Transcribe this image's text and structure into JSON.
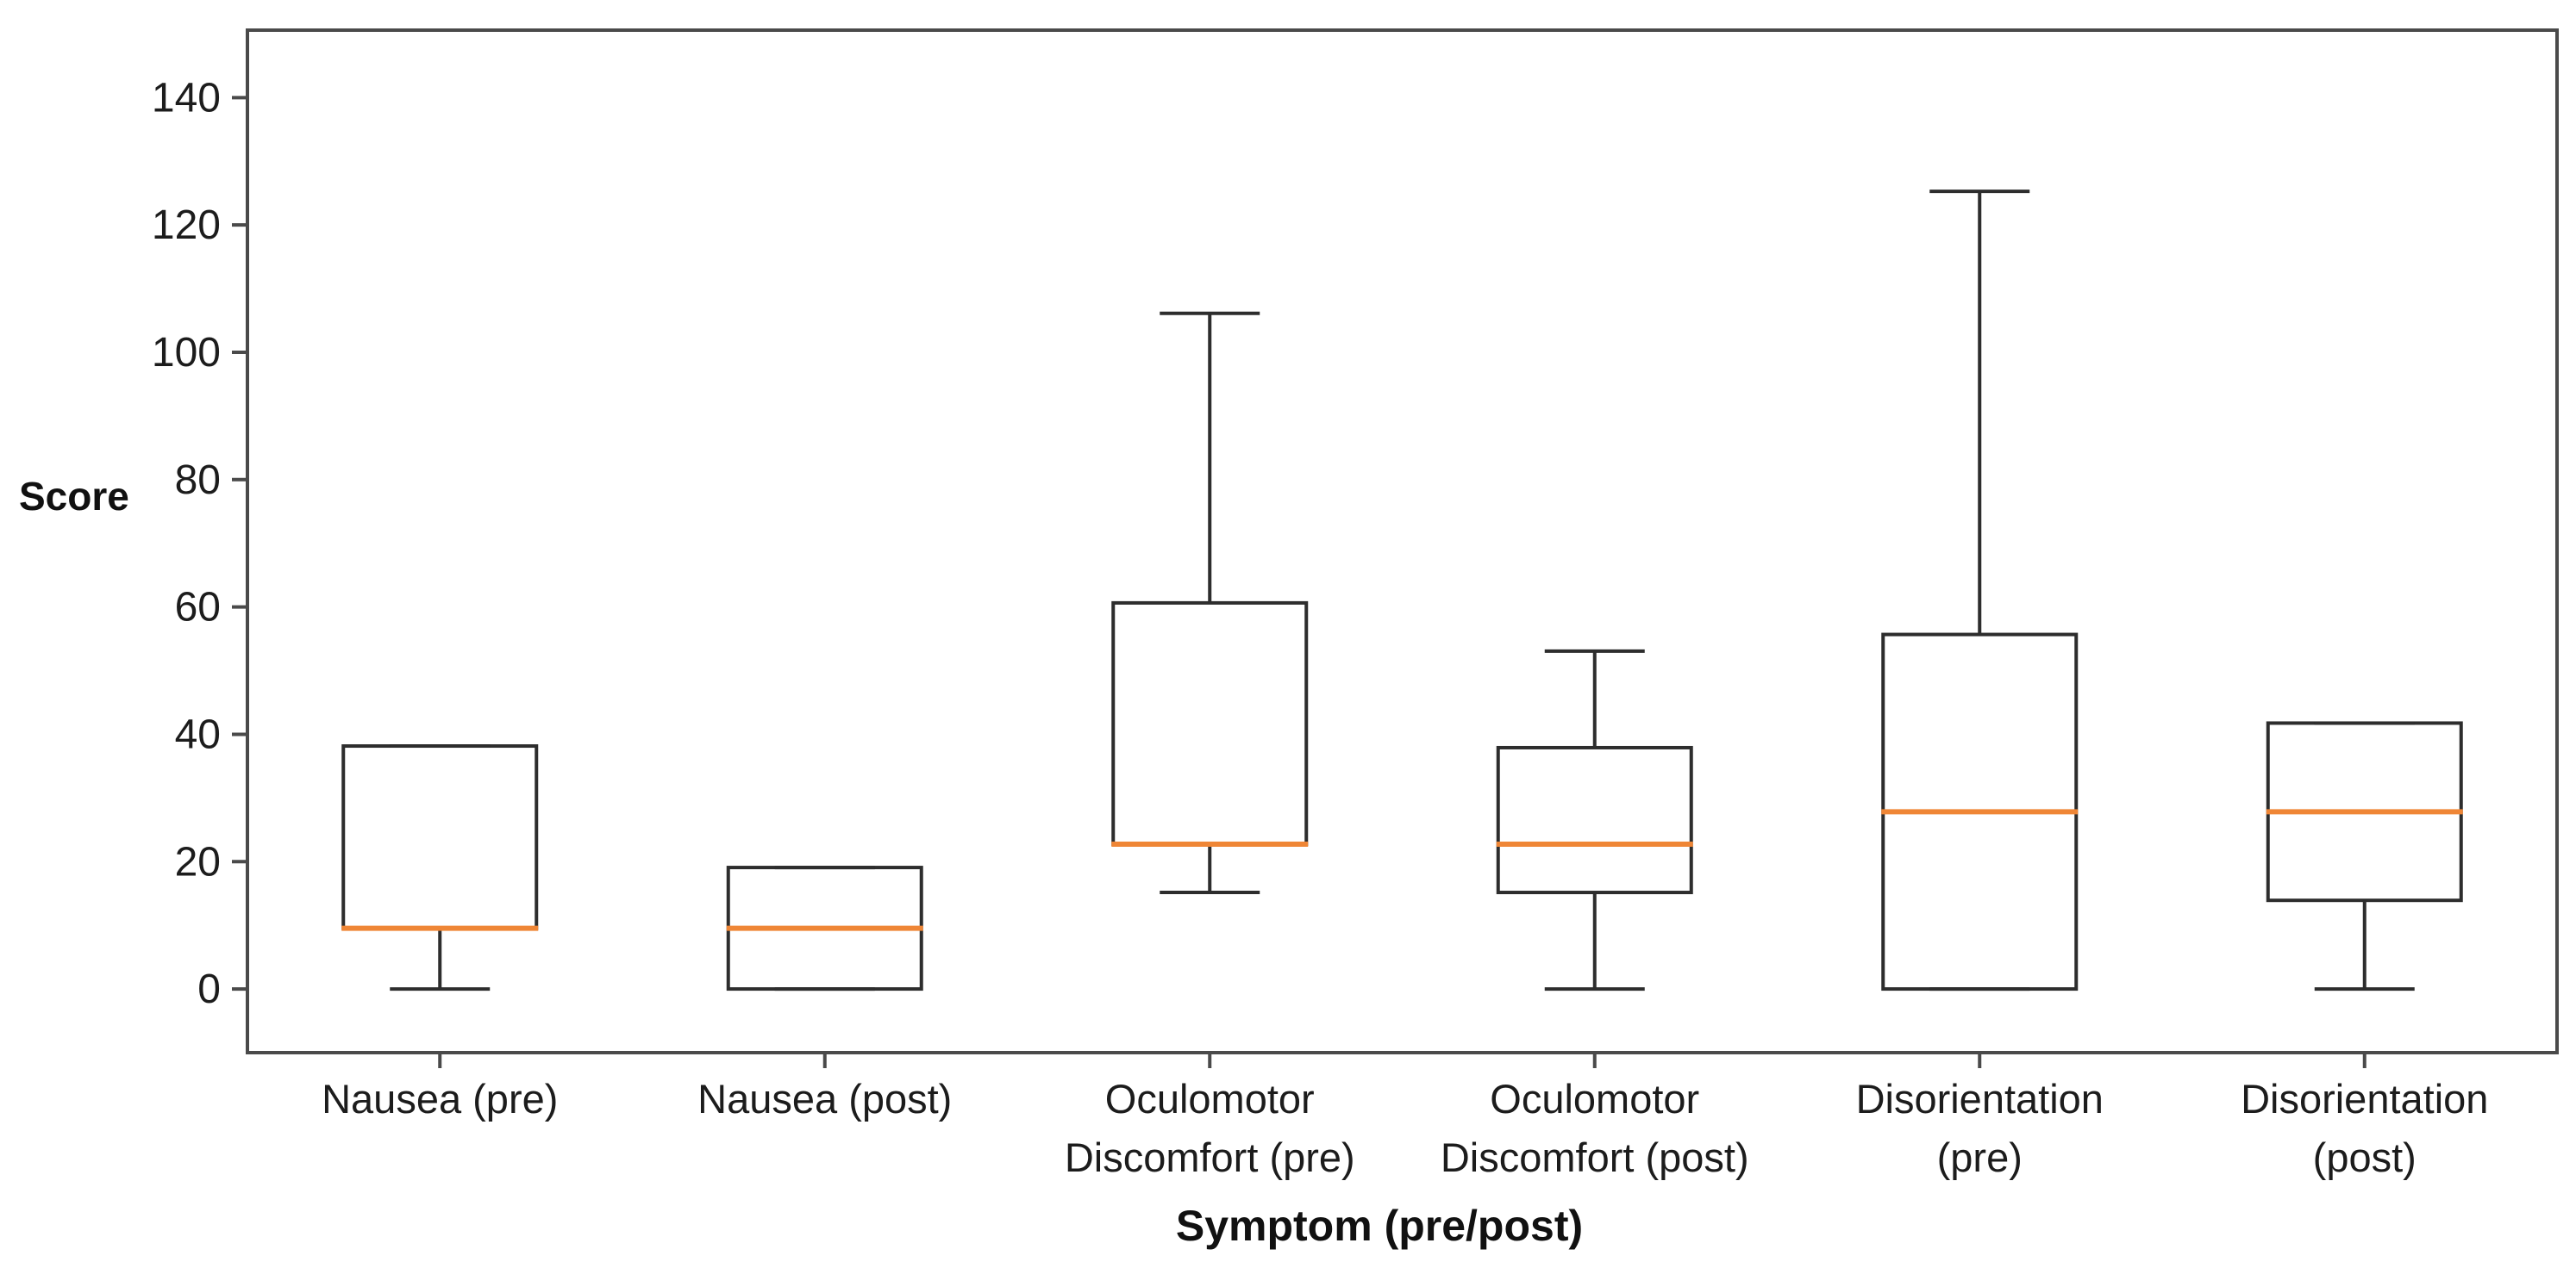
{
  "figure": {
    "y_axis_title": "Score",
    "x_axis_title": "Symptom (pre/post)"
  },
  "chart_data": {
    "type": "boxplot",
    "title": "",
    "xlabel": "Symptom (pre/post)",
    "ylabel": "Score",
    "ylim": [
      -10,
      150.6
    ],
    "yticks": [
      0,
      20,
      40,
      60,
      80,
      100,
      120,
      140
    ],
    "grid": false,
    "legend": null,
    "categories": [
      "Nausea (pre)",
      "Nausea (post)",
      "Oculomotor Discomfort (pre)",
      "Oculomotor Discomfort (post)",
      "Disorientation (pre)",
      "Disorientation (post)"
    ],
    "boxes": [
      {
        "id": "nausea-pre",
        "label_lines": [
          "Nausea (pre)"
        ],
        "whislo": 0,
        "q1": 9.54,
        "med": 9.54,
        "q3": 38.16,
        "whishi": 38.16
      },
      {
        "id": "nausea-post",
        "label_lines": [
          "Nausea (post)"
        ],
        "whislo": 0,
        "q1": 0,
        "med": 9.54,
        "q3": 19.08,
        "whishi": 19.08
      },
      {
        "id": "oculomotor-pre",
        "label_lines": [
          "Oculomotor",
          "Discomfort (pre)"
        ],
        "whislo": 15.16,
        "q1": 22.74,
        "med": 22.74,
        "q3": 60.64,
        "whishi": 106.12
      },
      {
        "id": "oculomotor-post",
        "label_lines": [
          "Oculomotor",
          "Discomfort (post)"
        ],
        "whislo": 0,
        "q1": 15.16,
        "med": 22.74,
        "q3": 37.9,
        "whishi": 53.06
      },
      {
        "id": "disorientation-pre",
        "label_lines": [
          "Disorientation",
          "(pre)"
        ],
        "whislo": 0,
        "q1": 0,
        "med": 27.84,
        "q3": 55.68,
        "whishi": 125.28
      },
      {
        "id": "disorientation-post",
        "label_lines": [
          "Disorientation",
          "(post)"
        ],
        "whislo": 0,
        "q1": 13.92,
        "med": 27.84,
        "q3": 41.76,
        "whishi": 41.76
      }
    ],
    "colors": {
      "background": "#ffffff",
      "axis": "#4a4a4a",
      "box_edge": "#2d2d2d",
      "median": "#ef8636",
      "text": "#1c1c1c"
    }
  }
}
